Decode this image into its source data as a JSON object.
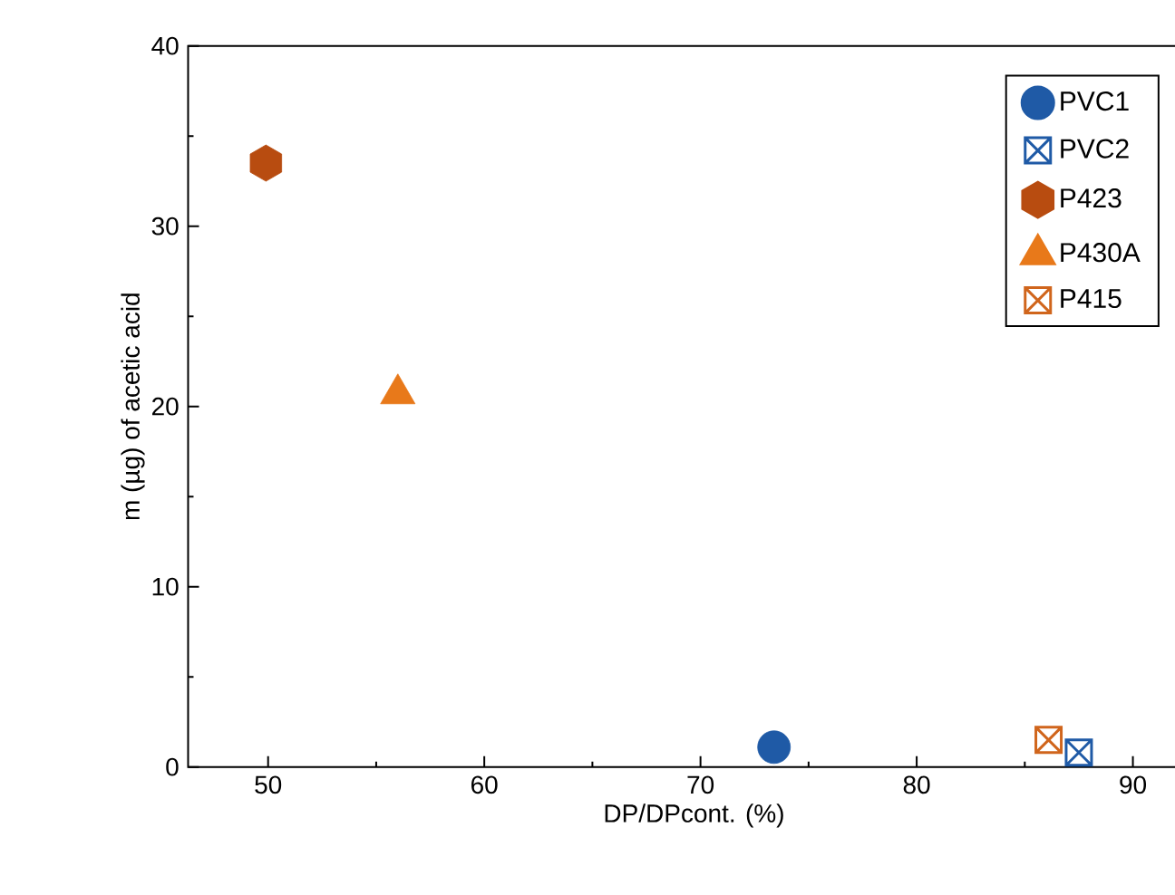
{
  "chart_data": {
    "type": "scatter",
    "xlabel": "DP/DPcont. (%)",
    "ylabel": "m (µg) of acetic acid",
    "xlim": [
      46.3,
      93.1
    ],
    "xticks": [
      50,
      60,
      70,
      80,
      90
    ],
    "ylim": [
      0,
      40
    ],
    "yticks": [
      0,
      10,
      20,
      30,
      40
    ],
    "legend": "top right",
    "grid": false,
    "series": [
      {
        "name": "PVC1",
        "color": "#1f5aa6",
        "marker": "circle",
        "x": [
          73.4
        ],
        "values": [
          1.1
        ]
      },
      {
        "name": "PVC2",
        "color": "#1f5aa6",
        "marker": "cross",
        "x": [
          87.5
        ],
        "values": [
          0.8
        ]
      },
      {
        "name": "P423",
        "color": "#b84c10",
        "x": [
          49.9
        ],
        "values": [
          33.5
        ]
      },
      {
        "name": "P430A",
        "color": "#e8791a",
        "marker": "triangle",
        "x": [
          56.0
        ],
        "values": [
          20.7
        ]
      },
      {
        "name": "P415",
        "color": "#d0651c",
        "marker": "cross",
        "x": [
          86.1
        ],
        "values": [
          1.5
        ]
      }
    ]
  }
}
